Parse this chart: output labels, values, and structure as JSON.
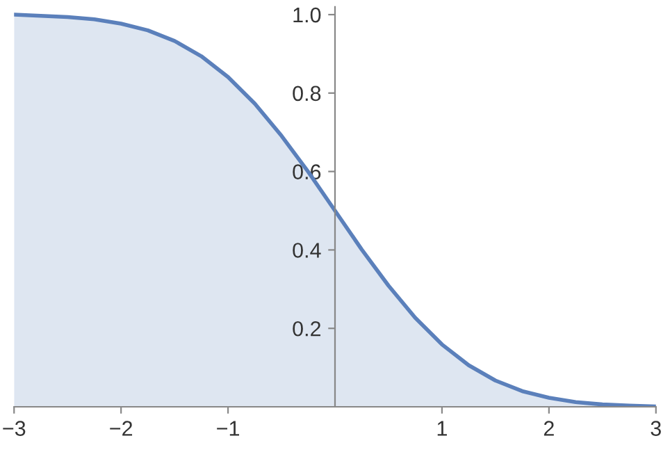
{
  "chart_data": {
    "type": "area",
    "x": [
      -3,
      -2.75,
      -2.5,
      -2.25,
      -2,
      -1.75,
      -1.5,
      -1.25,
      -1,
      -0.75,
      -0.5,
      -0.25,
      0,
      0.25,
      0.5,
      0.75,
      1,
      1.25,
      1.5,
      1.75,
      2,
      2.25,
      2.5,
      2.75,
      3
    ],
    "series": [
      {
        "color": "#5b80bb",
        "values": [
          1.0,
          0.997,
          0.994,
          0.988,
          0.977,
          0.96,
          0.933,
          0.894,
          0.841,
          0.773,
          0.691,
          0.599,
          0.5,
          0.401,
          0.309,
          0.227,
          0.159,
          0.106,
          0.067,
          0.04,
          0.023,
          0.012,
          0.006,
          0.003,
          0.001
        ]
      }
    ],
    "xlim": [
      -3,
      3
    ],
    "ylim": [
      0,
      1.02
    ],
    "xticks": [
      {
        "value": -3,
        "label": "−3"
      },
      {
        "value": -2,
        "label": "−2"
      },
      {
        "value": -1,
        "label": "−1"
      },
      1,
      2,
      3
    ],
    "yticks": [
      0.2,
      0.4,
      0.6,
      0.8,
      {
        "value": 1,
        "label": "1.0"
      }
    ],
    "grid": false,
    "legend": false
  }
}
